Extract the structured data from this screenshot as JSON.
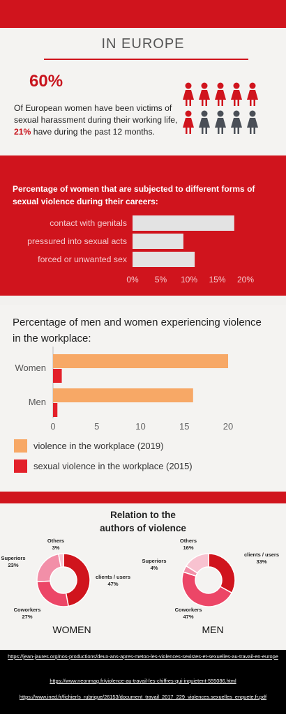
{
  "europe": {
    "title": "IN EUROPE",
    "big_stat": "60%",
    "text_a": "Of European women have been victims of sexual harassment during their working life,",
    "text_hl": "21%",
    "text_b": "have during the past 12 months.",
    "icon_name": "woman-figure-icon",
    "colors": {
      "highlight": "#d0141d",
      "grey": "#4a4f57"
    }
  },
  "violence_forms": {
    "title": "Percentage of women that are subjected to different forms of sexual violence during their careers:"
  },
  "workplace": {
    "title": "Percentage of men and women experiencing violence in the workplace:"
  },
  "relation": {
    "title_line1": "Relation to the",
    "title_line2": "authors of violence",
    "women_label": "WOMEN",
    "men_label": "MEN"
  },
  "sources": [
    "https://jean-jaures.org/nos-productions/deux-ans-apres-metoo-les-violences-sexistes-et-sexuelles-au-travail-en-europe",
    "https://www.neonmag.fr/violence-au-travail-les-chiffres-qui-inquietent-555086.html",
    "https://www.ined.fr/fichier/s_rubrique/26153/document_travail_2017_229_violences.sexuelles_enquete.fr.pdf"
  ],
  "chart_data": [
    {
      "type": "bar",
      "orientation": "horizontal",
      "categories": [
        "contact with genitals",
        "pressured into sexual acts",
        "forced or unwanted sex"
      ],
      "values": [
        18,
        9,
        11
      ],
      "tick_labels": [
        "0%",
        "5%",
        "10%",
        "15%",
        "20%"
      ],
      "xlim": [
        0,
        20
      ],
      "color": "#e3e3e3",
      "grid": false
    },
    {
      "type": "bar",
      "orientation": "horizontal",
      "categories": [
        "Women",
        "Men"
      ],
      "series": [
        {
          "name": "violence in the workplace (2019)",
          "values": [
            20,
            16
          ],
          "color": "#f7a866"
        },
        {
          "name": "sexual violence in the workplace (2015)",
          "values": [
            1,
            0.5
          ],
          "color": "#e3202a"
        }
      ],
      "tick_labels": [
        "0",
        "5",
        "10",
        "15",
        "20"
      ],
      "xlim": [
        0,
        20
      ],
      "legend": "bottom"
    },
    {
      "type": "pie",
      "label": "WOMEN",
      "slices": [
        {
          "name": "clients / users",
          "pct_label": "47%",
          "value": 47,
          "color": "#d0141d"
        },
        {
          "name": "Coworkers",
          "pct_label": "27%",
          "value": 27,
          "color": "#ec4667"
        },
        {
          "name": "Superiors",
          "pct_label": "23%",
          "value": 23,
          "color": "#f28fa8"
        },
        {
          "name": "Others",
          "pct_label": "3%",
          "value": 3,
          "color": "#f8c2d0"
        }
      ]
    },
    {
      "type": "pie",
      "label": "MEN",
      "slices": [
        {
          "name": "clients / users",
          "pct_label": "33%",
          "value": 33,
          "color": "#d0141d"
        },
        {
          "name": "Coworkers",
          "pct_label": "47%",
          "value": 47,
          "color": "#ec4667"
        },
        {
          "name": "Superiors",
          "pct_label": "4%",
          "value": 4,
          "color": "#f28fa8"
        },
        {
          "name": "Others",
          "pct_label": "16%",
          "value": 16,
          "color": "#f8c2d0"
        }
      ]
    }
  ]
}
